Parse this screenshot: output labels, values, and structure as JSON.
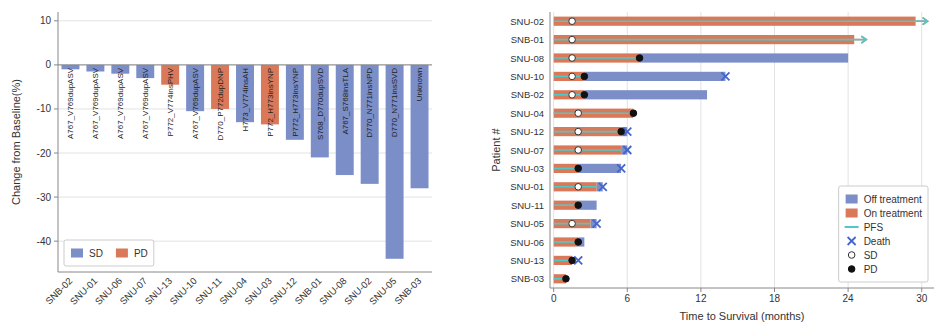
{
  "chart_data": [
    {
      "type": "bar",
      "categories": [
        "SNB-02",
        "SNU-01",
        "SNU-06",
        "SNU-07",
        "SNU-13",
        "SNU-10",
        "SNU-11",
        "SNU-04",
        "SNU-03",
        "SNU-12",
        "SNB-01",
        "SNU-08",
        "SNU-02",
        "SNU-05",
        "SNB-03"
      ],
      "series": [
        {
          "name": "SD",
          "color": "#7b8ec8",
          "values": [
            -1,
            -1.5,
            -2,
            -3,
            null,
            -10.5,
            null,
            -13,
            null,
            -17,
            -21,
            -25,
            -27,
            -44,
            -28
          ]
        },
        {
          "name": "PD",
          "color": "#d9795a",
          "values": [
            null,
            null,
            null,
            null,
            -4.5,
            null,
            -10,
            null,
            -13.5,
            null,
            null,
            null,
            null,
            null,
            null
          ]
        }
      ],
      "annotations": [
        "A767_V769dupASV",
        "A767_V769dupASV",
        "A767_V769dupASV",
        "A767_V769dupASV",
        "P772_V774insPHV",
        "A767_V769dupASV",
        "D770_P772dupDNP",
        "H773_V774insAH",
        "P772_H773insYNP",
        "P772_H773insYNP",
        "S768_D770dupSVD",
        "A767_S768insTLA",
        "D770_N771insNPD",
        "D770_N771insSVD",
        "Unknown"
      ],
      "ylabel": "Change from Baseline(%)",
      "ylim": [
        -47,
        12
      ],
      "yticks": [
        10,
        0,
        -10,
        -20,
        -30,
        -40
      ],
      "grid": true,
      "legend": "lower left"
    },
    {
      "type": "swimmer",
      "orientation": "horizontal",
      "categories": [
        "SNU-02",
        "SNB-01",
        "SNU-08",
        "SNU-10",
        "SNB-02",
        "SNU-04",
        "SNU-12",
        "SNU-07",
        "SNU-03",
        "SNU-01",
        "SNU-11",
        "SNU-05",
        "SNU-06",
        "SNU-13",
        "SNB-03"
      ],
      "series": [
        {
          "name": "Off treatment",
          "type": "bar",
          "color": "#7b8ec8",
          "start": [
            null,
            null,
            7,
            2.5,
            2.5,
            6.5,
            5.5,
            5.5,
            2,
            3.5,
            2,
            3,
            2,
            null,
            null
          ],
          "end": [
            null,
            null,
            24,
            14,
            12.5,
            6.5,
            6,
            6,
            5.5,
            4,
            3.5,
            3.5,
            2.5,
            null,
            null
          ]
        },
        {
          "name": "On treatment",
          "type": "bar",
          "color": "#d9795a",
          "values": [
            29.5,
            24.5,
            7,
            2.5,
            2.5,
            6.5,
            5.5,
            5.5,
            2,
            3.5,
            2,
            3,
            2,
            1.5,
            1
          ],
          "arrow": [
            true,
            true,
            false,
            false,
            false,
            false,
            false,
            false,
            false,
            false,
            false,
            false,
            false,
            false,
            false
          ]
        },
        {
          "name": "PFS",
          "type": "line",
          "color": "#50c8c8",
          "values": [
            29.5,
            24.5,
            7,
            2.5,
            2.5,
            6.5,
            5.5,
            5.5,
            2,
            3.5,
            2,
            3,
            2,
            1.5,
            1
          ],
          "arrow": [
            true,
            true,
            false,
            false,
            false,
            false,
            false,
            false,
            false,
            false,
            false,
            false,
            false,
            false,
            false
          ]
        },
        {
          "name": "Death",
          "type": "scatter",
          "marker": "x",
          "color": "#4466cc",
          "values": [
            null,
            null,
            null,
            14,
            null,
            null,
            6,
            6,
            5.5,
            4,
            null,
            3.5,
            null,
            2,
            null
          ]
        },
        {
          "name": "SD",
          "type": "scatter",
          "marker": "circle-open",
          "color": "#333333",
          "values": [
            1.5,
            1.5,
            1.5,
            1.5,
            1.5,
            2,
            2,
            2,
            null,
            2,
            null,
            1.5,
            null,
            null,
            null
          ]
        },
        {
          "name": "PD",
          "type": "scatter",
          "marker": "circle",
          "color": "#111111",
          "values": [
            null,
            null,
            7,
            2.5,
            2.5,
            6.5,
            5.5,
            null,
            2,
            null,
            2,
            null,
            2,
            1.5,
            1
          ]
        }
      ],
      "xlabel": "Time to Survival (months)",
      "ylabel": "Patient #",
      "xlim": [
        -0.3,
        31
      ],
      "xticks": [
        0,
        6,
        12,
        18,
        24,
        30
      ],
      "grid": true,
      "legend": "lower right"
    }
  ]
}
